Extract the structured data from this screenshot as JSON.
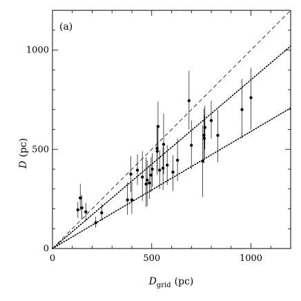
{
  "chart_data": {
    "type": "scatter",
    "panel_label": "(a)",
    "xlabel_main": "D",
    "xlabel_sub": "grid",
    "xlabel_unit": "(pc)",
    "ylabel_main": "D",
    "ylabel_unit": "(pc)",
    "xlim": [
      0,
      1200
    ],
    "ylim": [
      0,
      1200
    ],
    "xticks": [
      0,
      500,
      1000
    ],
    "yticks": [
      0,
      500,
      1000
    ],
    "minor_tick_step": 100,
    "grid": false,
    "reference_lines": [
      {
        "style": "dashed",
        "slope": 1.0
      },
      {
        "style": "dotted",
        "slope": 0.85
      },
      {
        "style": "dotted",
        "slope": 0.59
      }
    ],
    "points": [
      {
        "x": 128,
        "y": 195,
        "lo": 155,
        "hi": 235
      },
      {
        "x": 140,
        "y": 255,
        "lo": 190,
        "hi": 325
      },
      {
        "x": 148,
        "y": 205,
        "lo": 150,
        "hi": 270
      },
      {
        "x": 168,
        "y": 185,
        "lo": 140,
        "hi": 230
      },
      {
        "x": 218,
        "y": 130,
        "lo": 105,
        "hi": 160
      },
      {
        "x": 248,
        "y": 180,
        "lo": 140,
        "hi": 225
      },
      {
        "x": 378,
        "y": 245,
        "lo": 170,
        "hi": 335
      },
      {
        "x": 395,
        "y": 375,
        "lo": 285,
        "hi": 465
      },
      {
        "x": 400,
        "y": 245,
        "lo": 175,
        "hi": 335
      },
      {
        "x": 428,
        "y": 395,
        "lo": 320,
        "hi": 475
      },
      {
        "x": 453,
        "y": 360,
        "lo": 240,
        "hi": 490
      },
      {
        "x": 472,
        "y": 325,
        "lo": 210,
        "hi": 460
      },
      {
        "x": 477,
        "y": 345,
        "lo": 215,
        "hi": 445
      },
      {
        "x": 488,
        "y": 330,
        "lo": 250,
        "hi": 420
      },
      {
        "x": 497,
        "y": 370,
        "lo": 285,
        "hi": 460
      },
      {
        "x": 503,
        "y": 400,
        "lo": 310,
        "hi": 480
      },
      {
        "x": 527,
        "y": 505,
        "lo": 390,
        "hi": 620
      },
      {
        "x": 528,
        "y": 490,
        "lo": 370,
        "hi": 610
      },
      {
        "x": 532,
        "y": 615,
        "lo": 490,
        "hi": 740
      },
      {
        "x": 540,
        "y": 395,
        "lo": 300,
        "hi": 495
      },
      {
        "x": 557,
        "y": 405,
        "lo": 295,
        "hi": 515
      },
      {
        "x": 560,
        "y": 525,
        "lo": 375,
        "hi": 680
      },
      {
        "x": 578,
        "y": 420,
        "lo": 320,
        "hi": 520
      },
      {
        "x": 607,
        "y": 385,
        "lo": 290,
        "hi": 470
      },
      {
        "x": 630,
        "y": 445,
        "lo": 340,
        "hi": 555
      },
      {
        "x": 688,
        "y": 745,
        "lo": 600,
        "hi": 895
      },
      {
        "x": 700,
        "y": 520,
        "lo": 400,
        "hi": 645
      },
      {
        "x": 757,
        "y": 440,
        "lo": 260,
        "hi": 620
      },
      {
        "x": 763,
        "y": 570,
        "lo": 430,
        "hi": 705
      },
      {
        "x": 765,
        "y": 555,
        "lo": 450,
        "hi": 670
      },
      {
        "x": 768,
        "y": 610,
        "lo": 500,
        "hi": 720
      },
      {
        "x": 800,
        "y": 645,
        "lo": 555,
        "hi": 745
      },
      {
        "x": 833,
        "y": 570,
        "lo": 435,
        "hi": 700
      },
      {
        "x": 955,
        "y": 700,
        "lo": 555,
        "hi": 855
      },
      {
        "x": 1000,
        "y": 760,
        "lo": 600,
        "hi": 910
      }
    ]
  }
}
